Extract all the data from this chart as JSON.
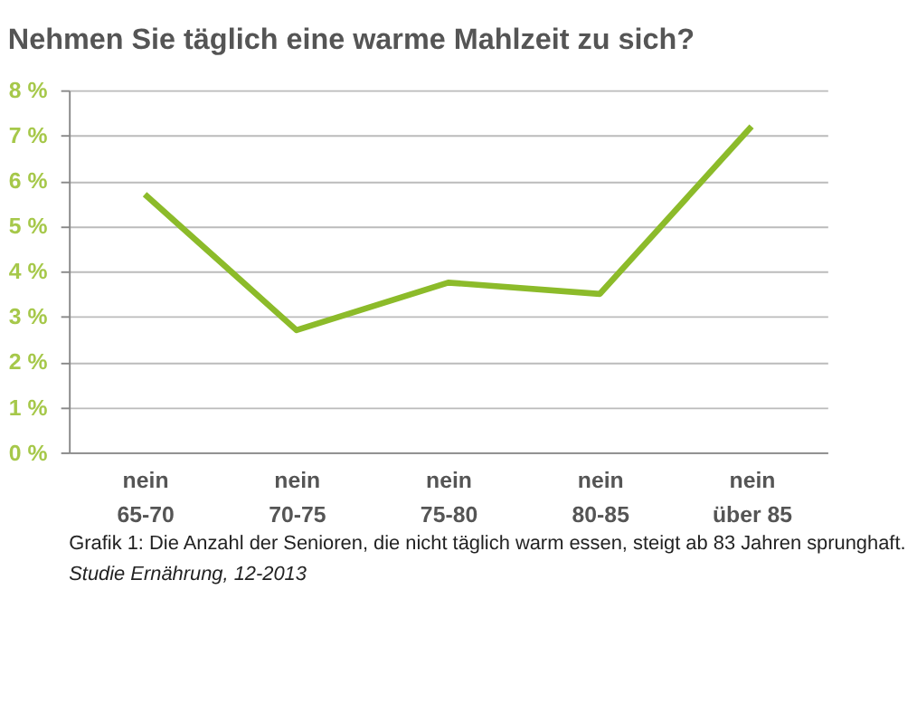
{
  "chart_data": {
    "type": "line",
    "title": "Nehmen Sie täglich eine warme Mahlzeit zu sich?",
    "categories": [
      "nein\n65-70",
      "nein\n70-75",
      "nein\n75-80",
      "nein\n80-85",
      "nein\nüber 85"
    ],
    "series": [
      {
        "color": "#8cbb2a",
        "values": [
          5.7,
          2.7,
          3.75,
          3.5,
          7.2
        ]
      }
    ],
    "ylim": [
      0,
      8
    ],
    "yticks": [
      {
        "value": 0,
        "label": "0 %"
      },
      {
        "value": 1,
        "label": "1 %"
      },
      {
        "value": 2,
        "label": "2 %"
      },
      {
        "value": 3,
        "label": "3 %"
      },
      {
        "value": 4,
        "label": "4 %"
      },
      {
        "value": 5,
        "label": "5 %"
      },
      {
        "value": 6,
        "label": "6 %"
      },
      {
        "value": 7,
        "label": "7 %"
      },
      {
        "value": 8,
        "label": "8 %"
      }
    ],
    "grid": "y",
    "legend": false,
    "marker": "none",
    "line_style": "solid",
    "annotations": [
      "Grafik 1: Die Anzahl der Senioren, die nicht täglich warm essen, steigt ab 83 Jahren sprunghaft.",
      "Studie Ernährung, 12-2013"
    ]
  }
}
